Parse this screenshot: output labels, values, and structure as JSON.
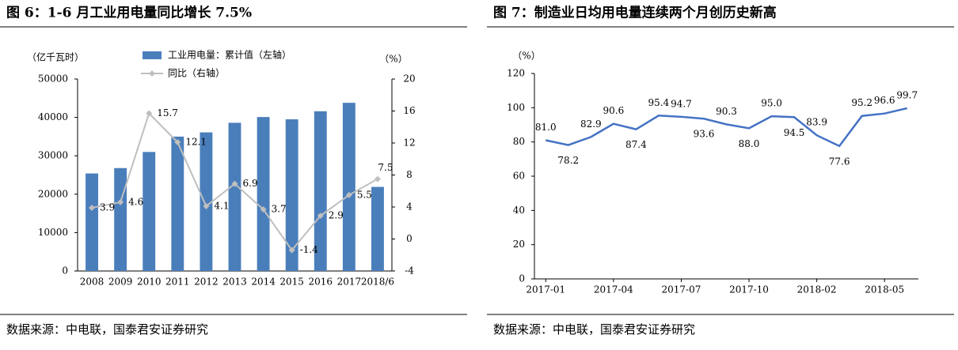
{
  "chart_data": [
    {
      "type": "bar-line",
      "title": "图 6：1-6 月工业用电量同比增长 7.5%",
      "ylabel": "（亿千瓦时）",
      "y2label": "（%）",
      "categories": [
        "2008",
        "2009",
        "2010",
        "2011",
        "2012",
        "2013",
        "2014",
        "2015",
        "2016",
        "2017",
        "2018/6"
      ],
      "series": [
        {
          "name": "工业用电量：累计值（左轴）",
          "type": "bar",
          "color": "#4a7ebb",
          "values": [
            25400,
            26800,
            31000,
            35000,
            36100,
            38600,
            40100,
            39500,
            41600,
            43800,
            21900
          ]
        },
        {
          "name": "同比（右轴）",
          "type": "line",
          "axis": "y2",
          "color": "#bfbfbf",
          "values": [
            3.9,
            4.6,
            15.7,
            12.1,
            4.1,
            6.9,
            3.7,
            -1.4,
            2.9,
            5.5,
            7.5
          ]
        }
      ],
      "ylim": [
        0,
        50000
      ],
      "yticks": [
        0,
        10000,
        20000,
        30000,
        40000,
        50000
      ],
      "y2lim": [
        -4,
        20
      ],
      "y2ticks": [
        -4,
        0,
        4,
        8,
        12,
        16,
        20
      ],
      "source": "数据来源：中电联，国泰君安证券研究"
    },
    {
      "type": "line",
      "title": "图 7：制造业日均用电量连续两个月创历史新高",
      "ylabel": "（%）",
      "categories": [
        "2017-01",
        null,
        null,
        "2017-04",
        null,
        null,
        "2017-07",
        null,
        null,
        "2017-10",
        null,
        null,
        "2018-02",
        null,
        null,
        "2018-05",
        null
      ],
      "series": [
        {
          "color": "#4472c4",
          "values": [
            81.0,
            78.2,
            82.9,
            90.6,
            87.4,
            95.4,
            94.7,
            93.6,
            90.3,
            88.0,
            95.0,
            94.5,
            83.9,
            77.6,
            95.2,
            96.6,
            99.7
          ],
          "value_labels": [
            "81.0",
            "78.2",
            "82.9",
            "90.6",
            "87.4",
            "95.4",
            "94.7",
            "93.6",
            "90.3",
            "88.0",
            "95.0",
            "94.5",
            "83.9",
            "77.6",
            "95.2",
            "96.6",
            "99.7"
          ]
        }
      ],
      "ylim": [
        0,
        120
      ],
      "yticks": [
        0,
        20,
        40,
        60,
        80,
        100,
        120
      ],
      "source": "数据来源：中电联，国泰君安证券研究"
    }
  ]
}
